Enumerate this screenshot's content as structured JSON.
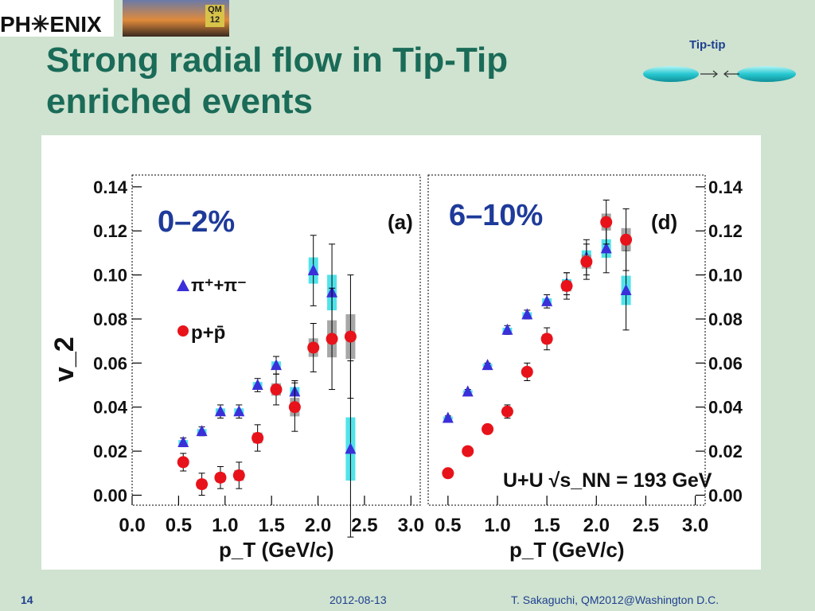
{
  "header": {
    "logo_text": "PH✳ENIX",
    "photo_badge": "QM 12",
    "title_line1": "Strong radial flow in Tip-Tip",
    "title_line2": "enriched events",
    "tiptip_label": "Tip-tip"
  },
  "footer": {
    "slide_number": "14",
    "date": "2012-08-13",
    "credit": "T. Sakaguchi, QM2012@Washington D.C."
  },
  "colors": {
    "title": "#1a6b58",
    "footer": "#1f3f8f",
    "pion_marker": "#3a2fd8",
    "proton_marker": "#e8121a",
    "syst_pion": "#3ee0e8",
    "syst_proton": "#8a8a8a",
    "panel_label": "#1e3a9a"
  },
  "chart_data": [
    {
      "type": "scatter",
      "panel_tag": "(a)",
      "centrality": "0–2%",
      "xlabel": "p_T (GeV/c)",
      "ylabel": "v_2",
      "xlim": [
        0.0,
        3.1
      ],
      "ylim": [
        -0.002,
        0.145
      ],
      "x_ticks": [
        "0.0",
        "0.5",
        "1.0",
        "1.5",
        "2.0",
        "2.5",
        "3.0"
      ],
      "y_ticks": [
        "0.00",
        "0.02",
        "0.04",
        "0.06",
        "0.08",
        "0.10",
        "0.12",
        "0.14"
      ],
      "legend": {
        "pion": "π⁺+π⁻",
        "proton": "p+p̄"
      },
      "series": [
        {
          "name": "π⁺+π⁻",
          "marker": "triangle",
          "x": [
            0.55,
            0.75,
            0.95,
            1.15,
            1.35,
            1.55,
            1.75,
            1.95,
            2.15,
            2.35
          ],
          "y": [
            0.024,
            0.029,
            0.038,
            0.038,
            0.05,
            0.059,
            0.047,
            0.102,
            0.092,
            0.021
          ],
          "err": [
            0.002,
            0.002,
            0.003,
            0.003,
            0.003,
            0.004,
            0.005,
            0.016,
            0.022,
            0.04
          ]
        },
        {
          "name": "p+p̄",
          "marker": "circle",
          "x": [
            0.55,
            0.75,
            0.95,
            1.15,
            1.35,
            1.55,
            1.75,
            1.95,
            2.15,
            2.35
          ],
          "y": [
            0.015,
            0.005,
            0.008,
            0.009,
            0.026,
            0.048,
            0.04,
            0.067,
            0.071,
            0.072
          ],
          "err": [
            0.004,
            0.005,
            0.005,
            0.006,
            0.006,
            0.007,
            0.011,
            0.011,
            0.023,
            0.028
          ]
        }
      ]
    },
    {
      "type": "scatter",
      "panel_tag": "(d)",
      "centrality": "6–10%",
      "system_label": "U+U √s_NN = 193 GeV",
      "xlabel": "p_T (GeV/c)",
      "xlim": [
        0.3,
        3.1
      ],
      "ylim": [
        -0.002,
        0.145
      ],
      "x_ticks": [
        "0.5",
        "1.0",
        "1.5",
        "2.0",
        "2.5",
        "3.0"
      ],
      "y_ticks": [
        "0.00",
        "0.02",
        "0.04",
        "0.06",
        "0.08",
        "0.10",
        "0.12",
        "0.14"
      ],
      "series": [
        {
          "name": "π⁺+π⁻",
          "marker": "triangle",
          "x": [
            0.5,
            0.7,
            0.9,
            1.1,
            1.3,
            1.5,
            1.7,
            1.9,
            2.1,
            2.3
          ],
          "y": [
            0.035,
            0.047,
            0.059,
            0.075,
            0.082,
            0.088,
            0.096,
            0.108,
            0.112,
            0.093
          ],
          "err": [
            0.001,
            0.001,
            0.001,
            0.002,
            0.002,
            0.003,
            0.005,
            0.008,
            0.011,
            0.018
          ]
        },
        {
          "name": "p+p̄",
          "marker": "circle",
          "x": [
            0.5,
            0.7,
            0.9,
            1.1,
            1.3,
            1.5,
            1.7,
            1.9,
            2.1,
            2.3
          ],
          "y": [
            0.01,
            0.02,
            0.03,
            0.038,
            0.056,
            0.071,
            0.095,
            0.106,
            0.124,
            0.116
          ],
          "err": [
            0.001,
            0.001,
            0.002,
            0.003,
            0.004,
            0.005,
            0.006,
            0.008,
            0.01,
            0.014
          ]
        }
      ]
    }
  ]
}
